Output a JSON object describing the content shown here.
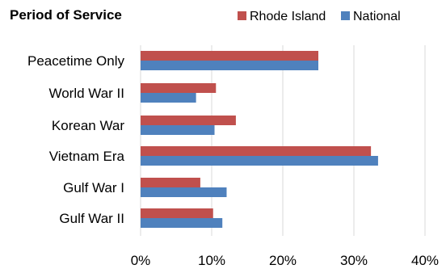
{
  "chart_data": {
    "type": "bar",
    "orientation": "horizontal",
    "title": "Period of Service",
    "xlabel": "",
    "ylabel": "",
    "categories": [
      "Peacetime Only",
      "World War II",
      "Korean War",
      "Vietnam Era",
      "Gulf War I",
      "Gulf War II"
    ],
    "series": [
      {
        "name": "Rhode Island",
        "color": "#c0504d",
        "values": [
          25.0,
          10.6,
          13.4,
          32.4,
          8.4,
          10.2
        ]
      },
      {
        "name": "National",
        "color": "#4f81bd",
        "values": [
          25.0,
          7.8,
          10.4,
          33.4,
          12.1,
          11.5
        ]
      }
    ],
    "xlim": [
      0,
      40
    ],
    "xticks": [
      0,
      10,
      20,
      30,
      40
    ],
    "tick_labels": [
      "0%",
      "10%",
      "20%",
      "30%",
      "40%"
    ],
    "grid": true,
    "legend_position": "top-right"
  }
}
